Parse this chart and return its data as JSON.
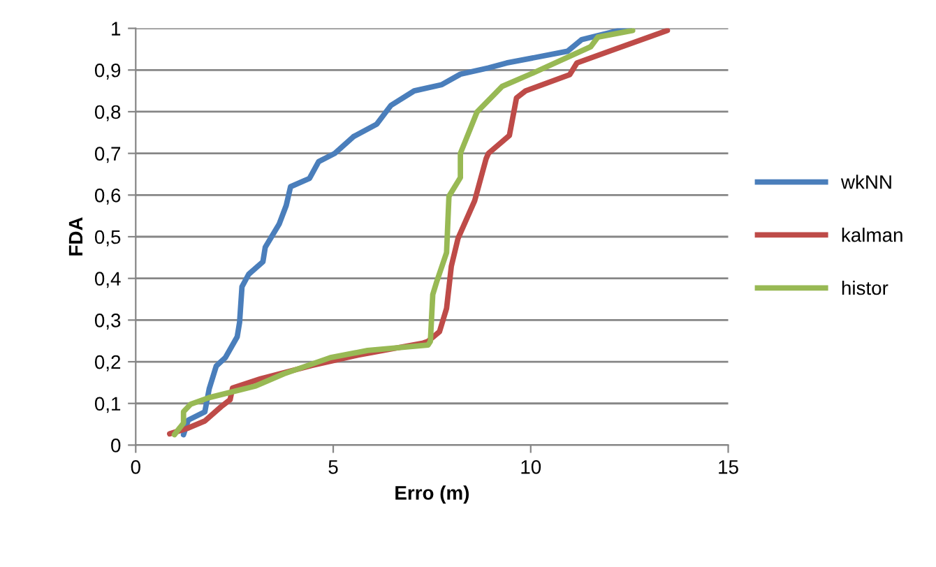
{
  "chart_data": {
    "type": "line",
    "xlabel": "Erro (m)",
    "ylabel": "FDA",
    "xlim": [
      0,
      15
    ],
    "xticks": [
      0,
      5,
      10,
      15
    ],
    "ylim": [
      0,
      1
    ],
    "yticks": [
      0,
      {
        "value": 0.1,
        "label": "0,1"
      },
      {
        "value": 0.2,
        "label": "0,2"
      },
      {
        "value": 0.3,
        "label": "0,3"
      },
      {
        "value": 0.4,
        "label": "0,4"
      },
      {
        "value": 0.5,
        "label": "0,5"
      },
      {
        "value": 0.6,
        "label": "0,6"
      },
      {
        "value": 0.7,
        "label": "0,7"
      },
      {
        "value": 0.8,
        "label": "0,8"
      },
      {
        "value": 0.9,
        "label": "0,9"
      },
      1
    ],
    "grid": "y",
    "legend": "right",
    "marker": "none",
    "line_style": "solid",
    "series": [
      {
        "name": "wkNN",
        "color": "#4a7ebb",
        "x": [
          1.21,
          1.33,
          1.75,
          1.86,
          2.04,
          2.27,
          2.57,
          2.63,
          2.69,
          2.86,
          3.22,
          3.28,
          3.63,
          3.81,
          3.92,
          4.4,
          4.63,
          5.04,
          5.51,
          6.1,
          6.46,
          7.05,
          7.75,
          8.22,
          8.93,
          9.39,
          10.93,
          11.29,
          12.23,
          12.5
        ],
        "values": [
          0.025,
          0.06,
          0.08,
          0.135,
          0.19,
          0.21,
          0.26,
          0.295,
          0.38,
          0.41,
          0.44,
          0.475,
          0.53,
          0.575,
          0.62,
          0.64,
          0.68,
          0.7,
          0.74,
          0.77,
          0.815,
          0.85,
          0.865,
          0.89,
          0.905,
          0.917,
          0.945,
          0.973,
          0.995,
          1.0
        ]
      },
      {
        "name": "kalman",
        "color": "#be4b48",
        "x": [
          0.86,
          1.33,
          1.75,
          2.16,
          2.39,
          2.45,
          3.16,
          4.45,
          5.63,
          7.28,
          7.4,
          7.69,
          7.87,
          7.99,
          8.16,
          8.58,
          8.87,
          8.93,
          9.46,
          9.64,
          9.87,
          10.99,
          11.17,
          11.99,
          13.46
        ],
        "values": [
          0.027,
          0.041,
          0.058,
          0.092,
          0.109,
          0.137,
          0.159,
          0.191,
          0.216,
          0.245,
          0.249,
          0.272,
          0.328,
          0.429,
          0.496,
          0.586,
          0.687,
          0.7,
          0.743,
          0.833,
          0.85,
          0.889,
          0.917,
          0.945,
          0.995
        ]
      },
      {
        "name": "histor",
        "color": "#98b954",
        "x": [
          0.98,
          1.21,
          1.21,
          1.39,
          1.86,
          3.04,
          3.75,
          4.93,
          5.87,
          7.4,
          7.46,
          7.52,
          7.63,
          7.87,
          7.93,
          8.22,
          8.22,
          8.64,
          9.28,
          10.11,
          11.52,
          11.7,
          12.58
        ],
        "values": [
          0.025,
          0.053,
          0.08,
          0.098,
          0.114,
          0.142,
          0.171,
          0.21,
          0.227,
          0.24,
          0.249,
          0.361,
          0.395,
          0.462,
          0.597,
          0.642,
          0.7,
          0.799,
          0.861,
          0.895,
          0.956,
          0.979,
          0.995
        ]
      }
    ]
  }
}
